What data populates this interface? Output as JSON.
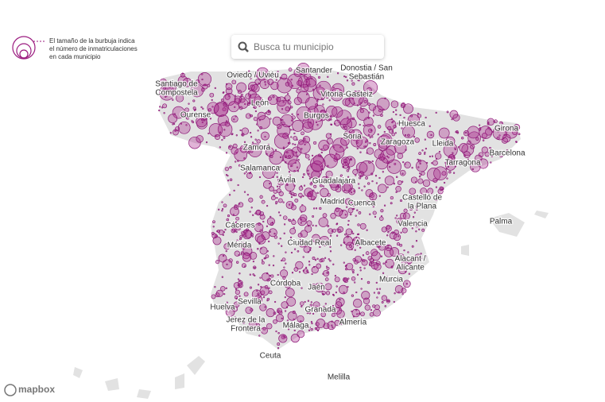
{
  "legend": {
    "lines": [
      "El tamaño de la burbuja indica",
      "el número de inmatriculaciones",
      "en cada municipio"
    ]
  },
  "search": {
    "placeholder": "Busca tu municipio"
  },
  "labels": [
    {
      "lines": [
        "Oviedo / Uviéu"
      ]
    },
    {
      "lines": [
        "Santander"
      ]
    },
    {
      "lines": [
        "Donostia / San",
        "Sebastián"
      ]
    },
    {
      "lines": [
        "Santiago de",
        "Compostela"
      ]
    },
    {
      "lines": [
        "León"
      ]
    },
    {
      "lines": [
        "Vitoria-Gasteiz"
      ]
    },
    {
      "lines": [
        "Burgos"
      ]
    },
    {
      "lines": [
        "Ourense"
      ]
    },
    {
      "lines": [
        "Huesca"
      ]
    },
    {
      "lines": [
        "Girona"
      ]
    },
    {
      "lines": [
        "Soria"
      ]
    },
    {
      "lines": [
        "Zaragoza"
      ]
    },
    {
      "lines": [
        "Lleida"
      ]
    },
    {
      "lines": [
        "Zamora"
      ]
    },
    {
      "lines": [
        "Barcelona"
      ]
    },
    {
      "lines": [
        "Tarragona"
      ]
    },
    {
      "lines": [
        "Salamanca"
      ]
    },
    {
      "lines": [
        "Guadalajara"
      ]
    },
    {
      "lines": [
        "Ávila"
      ]
    },
    {
      "lines": [
        "Castelló de",
        "la Plana"
      ]
    },
    {
      "lines": [
        "Madrid"
      ]
    },
    {
      "lines": [
        "Cuenca"
      ]
    },
    {
      "lines": [
        "Palma"
      ]
    },
    {
      "lines": [
        "Valencia"
      ]
    },
    {
      "lines": [
        "Cáceres"
      ]
    },
    {
      "lines": [
        "Ciudad Real"
      ]
    },
    {
      "lines": [
        "Albacete"
      ]
    },
    {
      "lines": [
        "Mérida"
      ]
    },
    {
      "lines": [
        "Alacant /",
        "Alicante"
      ]
    },
    {
      "lines": [
        "Murcia"
      ]
    },
    {
      "lines": [
        "Córdoba"
      ]
    },
    {
      "lines": [
        "Jaén"
      ]
    },
    {
      "lines": [
        "Sevilla"
      ]
    },
    {
      "lines": [
        "Huelva"
      ]
    },
    {
      "lines": [
        "Granada"
      ]
    },
    {
      "lines": [
        "Jerez de la",
        "Frontera"
      ]
    },
    {
      "lines": [
        "Almería"
      ]
    },
    {
      "lines": [
        "Málaga"
      ]
    },
    {
      "lines": [
        "Ceuta"
      ]
    },
    {
      "lines": [
        "Melilla"
      ]
    }
  ],
  "attribution": "mapbox"
}
